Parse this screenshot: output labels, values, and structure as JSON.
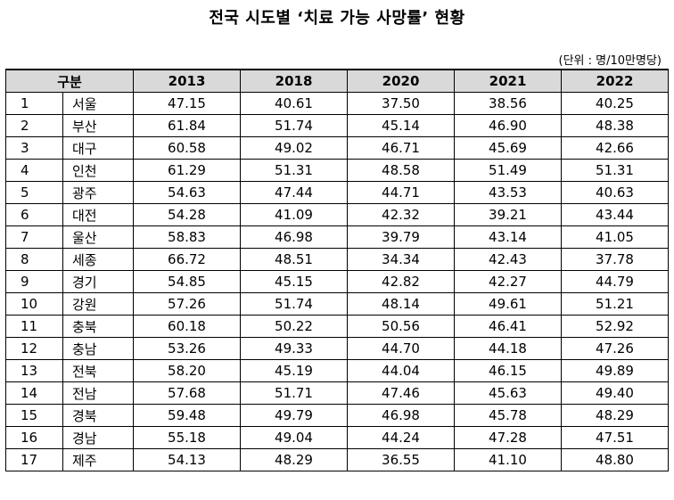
{
  "title": "전국 시도별 ‘치료 가능 사망률’ 현황",
  "unit": "(단위 : 명/10만명당)",
  "table": {
    "region_header": "구분",
    "years": [
      "2013",
      "2018",
      "2020",
      "2021",
      "2022"
    ],
    "rows": [
      {
        "no": "1",
        "name": "서울",
        "values": [
          "47.15",
          "40.61",
          "37.50",
          "38.56",
          "40.25"
        ]
      },
      {
        "no": "2",
        "name": "부산",
        "values": [
          "61.84",
          "51.74",
          "45.14",
          "46.90",
          "48.38"
        ]
      },
      {
        "no": "3",
        "name": "대구",
        "values": [
          "60.58",
          "49.02",
          "46.71",
          "45.69",
          "42.66"
        ]
      },
      {
        "no": "4",
        "name": "인천",
        "values": [
          "61.29",
          "51.31",
          "48.58",
          "51.49",
          "51.31"
        ]
      },
      {
        "no": "5",
        "name": "광주",
        "values": [
          "54.63",
          "47.44",
          "44.71",
          "43.53",
          "40.63"
        ]
      },
      {
        "no": "6",
        "name": "대전",
        "values": [
          "54.28",
          "41.09",
          "42.32",
          "39.21",
          "43.44"
        ]
      },
      {
        "no": "7",
        "name": "울산",
        "values": [
          "58.83",
          "46.98",
          "39.79",
          "43.14",
          "41.05"
        ]
      },
      {
        "no": "8",
        "name": "세종",
        "values": [
          "66.72",
          "48.51",
          "34.34",
          "42.43",
          "37.78"
        ]
      },
      {
        "no": "9",
        "name": "경기",
        "values": [
          "54.85",
          "45.15",
          "42.82",
          "42.27",
          "44.79"
        ]
      },
      {
        "no": "10",
        "name": "강원",
        "values": [
          "57.26",
          "51.74",
          "48.14",
          "49.61",
          "51.21"
        ]
      },
      {
        "no": "11",
        "name": "충북",
        "values": [
          "60.18",
          "50.22",
          "50.56",
          "46.41",
          "52.92"
        ]
      },
      {
        "no": "12",
        "name": "충남",
        "values": [
          "53.26",
          "49.33",
          "44.70",
          "44.18",
          "47.26"
        ]
      },
      {
        "no": "13",
        "name": "전북",
        "values": [
          "58.20",
          "45.19",
          "44.04",
          "46.15",
          "49.89"
        ]
      },
      {
        "no": "14",
        "name": "전남",
        "values": [
          "57.68",
          "51.71",
          "47.46",
          "45.63",
          "49.40"
        ]
      },
      {
        "no": "15",
        "name": "경북",
        "values": [
          "59.48",
          "49.79",
          "46.98",
          "45.78",
          "48.29"
        ]
      },
      {
        "no": "16",
        "name": "경남",
        "values": [
          "55.18",
          "49.04",
          "44.24",
          "47.28",
          "47.51"
        ]
      },
      {
        "no": "17",
        "name": "제주",
        "values": [
          "54.13",
          "48.29",
          "36.55",
          "41.10",
          "48.80"
        ]
      }
    ]
  }
}
